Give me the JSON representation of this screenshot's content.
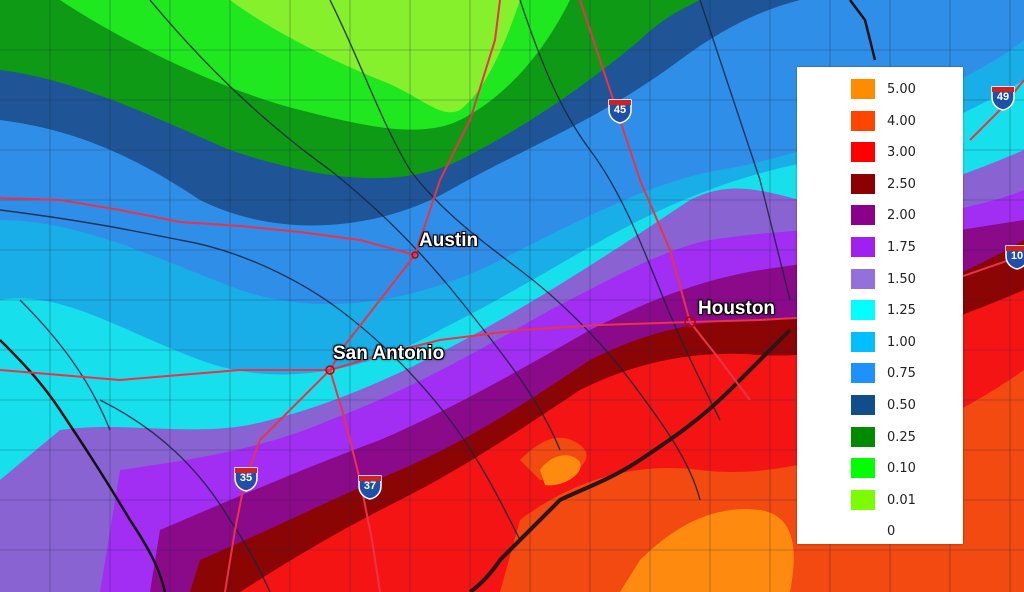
{
  "cities": [
    {
      "id": "austin",
      "name": "Austin"
    },
    {
      "id": "san-antonio",
      "name": "San Antonio"
    },
    {
      "id": "houston",
      "name": "Houston"
    }
  ],
  "highways": [
    {
      "id": "i45",
      "label": "45"
    },
    {
      "id": "i35",
      "label": "35"
    },
    {
      "id": "i37",
      "label": "37"
    },
    {
      "id": "i49",
      "label": "49"
    },
    {
      "id": "i10",
      "label": "10"
    }
  ],
  "legend": {
    "items": [
      {
        "label": "5.00",
        "color": "#ff8c00"
      },
      {
        "label": "4.00",
        "color": "#ff4500"
      },
      {
        "label": "3.00",
        "color": "#ff0000"
      },
      {
        "label": "2.50",
        "color": "#8b0000"
      },
      {
        "label": "2.00",
        "color": "#8b008b"
      },
      {
        "label": "1.75",
        "color": "#a020f0"
      },
      {
        "label": "1.50",
        "color": "#9370db"
      },
      {
        "label": "1.25",
        "color": "#00ffff"
      },
      {
        "label": "1.00",
        "color": "#00bfff"
      },
      {
        "label": "0.75",
        "color": "#1e90ff"
      },
      {
        "label": "0.50",
        "color": "#104e8b"
      },
      {
        "label": "0.25",
        "color": "#008b00"
      },
      {
        "label": "0.10",
        "color": "#00ff00"
      },
      {
        "label": "0.01",
        "color": "#7cfc00"
      },
      {
        "label": "0",
        "color": "#ffffff"
      }
    ]
  },
  "colors": {
    "road": "#e8334a",
    "county_line": "#1f2f4f",
    "coast": "#2a1a1a"
  }
}
